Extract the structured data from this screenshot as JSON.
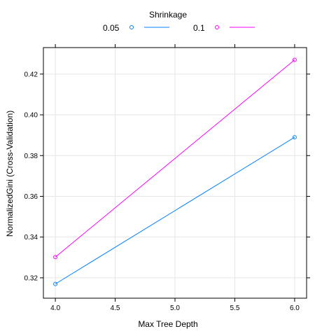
{
  "chart_data": {
    "type": "line",
    "legend_title": "Shrinkage",
    "legend_placement": "top",
    "xlabel": "Max Tree Depth",
    "ylabel": "NormalizedGini (Cross-Validation)",
    "xlim": [
      3.9,
      6.1
    ],
    "ylim": [
      0.31,
      0.433
    ],
    "x_ticks": [
      "4.0",
      "4.5",
      "5.0",
      "5.5",
      "6.0"
    ],
    "y_ticks": [
      "0.32",
      "0.34",
      "0.36",
      "0.38",
      "0.40",
      "0.42"
    ],
    "grid": true,
    "x": [
      4,
      6
    ],
    "series": [
      {
        "name": "0.05",
        "color": "#0080ff",
        "values": [
          0.317,
          0.389
        ]
      },
      {
        "name": "0.1",
        "color": "#ff00ff",
        "values": [
          0.3302,
          0.427
        ]
      }
    ]
  }
}
